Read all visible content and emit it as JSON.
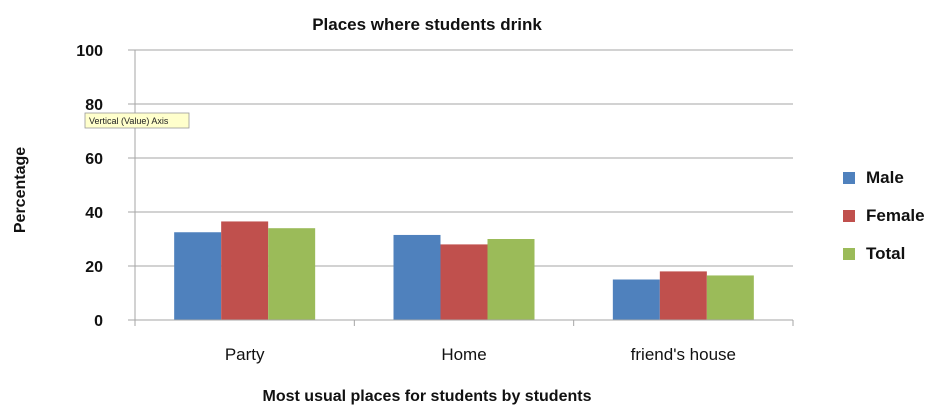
{
  "chart_data": {
    "type": "bar",
    "title": "Places where students drink",
    "xlabel": "Most usual places for students by students",
    "ylabel": "Percentage",
    "ylim": [
      0,
      100
    ],
    "yticks": [
      "0",
      "20",
      "40",
      "60",
      "80",
      "100"
    ],
    "categories": [
      "Party",
      "Home",
      "friend's house"
    ],
    "series": [
      {
        "name": "Male",
        "color": "#4f81bd",
        "values": [
          32.5,
          31.5,
          15
        ]
      },
      {
        "name": "Female",
        "color": "#c0504d",
        "values": [
          36.5,
          28,
          18
        ]
      },
      {
        "name": "Total",
        "color": "#9bbb59",
        "values": [
          34,
          30,
          16.5
        ]
      }
    ],
    "legend": "right",
    "grid": true,
    "tooltip": "Vertical (Value) Axis"
  }
}
